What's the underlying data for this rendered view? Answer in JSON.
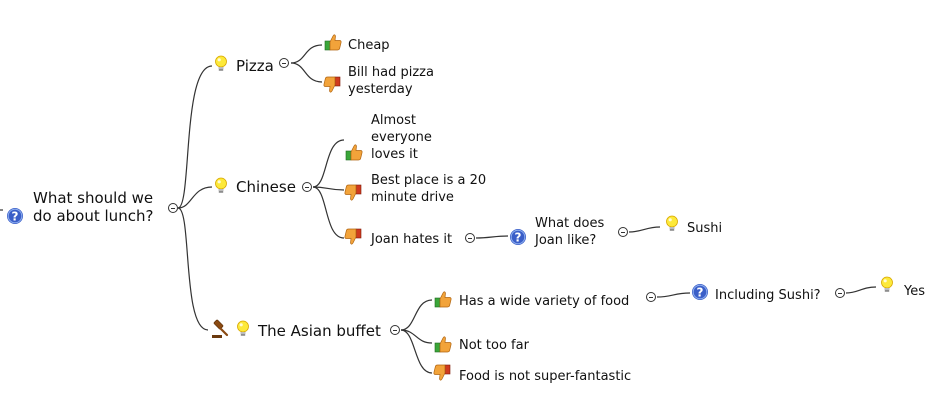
{
  "root": {
    "label_line1": "What should we",
    "label_line2": "do about lunch?",
    "icon": "question-icon"
  },
  "nodes": {
    "pizza": {
      "label": "Pizza",
      "icon": "bulb-icon"
    },
    "cheap": {
      "label": "Cheap",
      "icon": "thumbs-up-icon"
    },
    "bill": {
      "line1": "Bill had pizza",
      "line2": "yesterday",
      "icon": "thumbs-down-icon"
    },
    "chinese": {
      "label": "Chinese",
      "icon": "bulb-icon"
    },
    "almost": {
      "line1": "Almost",
      "line2": "everyone",
      "line3": "loves it",
      "icon": "thumbs-up-icon"
    },
    "bestplace": {
      "line1": "Best place is a 20",
      "line2": "minute drive",
      "icon": "thumbs-down-icon"
    },
    "joanhates": {
      "label": "Joan hates it",
      "icon": "thumbs-down-icon"
    },
    "joanlike": {
      "line1": "What does",
      "line2": "Joan like?",
      "icon": "question-icon"
    },
    "sushi": {
      "label": "Sushi",
      "icon": "bulb-icon"
    },
    "asian": {
      "label": "The Asian buffet",
      "icons": [
        "gavel-icon",
        "bulb-icon"
      ]
    },
    "variety": {
      "label": "Has a wide variety of food",
      "icon": "thumbs-up-icon"
    },
    "incsushi": {
      "label": "Including Sushi?",
      "icon": "question-icon"
    },
    "yes": {
      "label": "Yes",
      "icon": "bulb-icon"
    },
    "notfar": {
      "label": "Not too far",
      "icon": "thumbs-up-icon"
    },
    "fantastic": {
      "label": "Food is not super-fantastic",
      "icon": "thumbs-down-icon"
    }
  },
  "colors": {
    "line": "#333333",
    "bulb": "#fde93a",
    "question": "#3a5ec8",
    "up_cuff": "#3aa63a",
    "down_cuff": "#cf3a1f",
    "hand": "#f2a33a",
    "gavel": "#8a4a12"
  }
}
